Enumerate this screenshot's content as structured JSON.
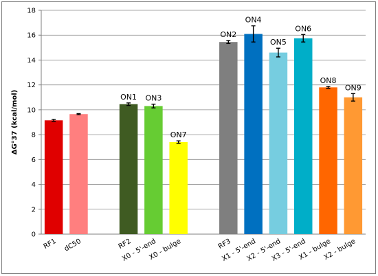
{
  "chart_data": {
    "type": "bar",
    "ylabel": "ΔG°37 (kcal/mol)",
    "ylim": [
      0,
      18
    ],
    "yticks": [
      0,
      2,
      4,
      6,
      8,
      10,
      12,
      14,
      16,
      18
    ],
    "grid": true,
    "legend": "none",
    "categories": [
      "RF1",
      "dC50",
      "RF2",
      "X0 - 5'-end",
      "X0 - bulge",
      "RF3",
      "X1 - 5'-end",
      "X2 - 5'-end",
      "X3 - 5'-end",
      "X1 - bulge",
      "X2 - bulge"
    ],
    "values": [
      9.15,
      9.65,
      10.45,
      10.3,
      7.4,
      15.45,
      16.1,
      14.6,
      15.75,
      11.8,
      11.0
    ],
    "errors": [
      0.08,
      0.04,
      0.1,
      0.15,
      0.1,
      0.12,
      0.65,
      0.35,
      0.3,
      0.08,
      0.3
    ],
    "bar_labels": [
      "",
      "",
      "ON1",
      "ON3",
      "ON7",
      "ON2",
      "ON4",
      "ON5",
      "ON6",
      "ON8",
      "ON9"
    ],
    "colors": [
      "#e00000",
      "#ff7f7f",
      "#3f5b22",
      "#66cc33",
      "#ffff00",
      "#7f7f7f",
      "#0070c0",
      "#76cde0",
      "#00aec8",
      "#ff6600",
      "#ff9933"
    ],
    "groups": [
      [
        0,
        1
      ],
      [
        2,
        3,
        4
      ],
      [
        5,
        6,
        7,
        8,
        9,
        10
      ]
    ]
  }
}
